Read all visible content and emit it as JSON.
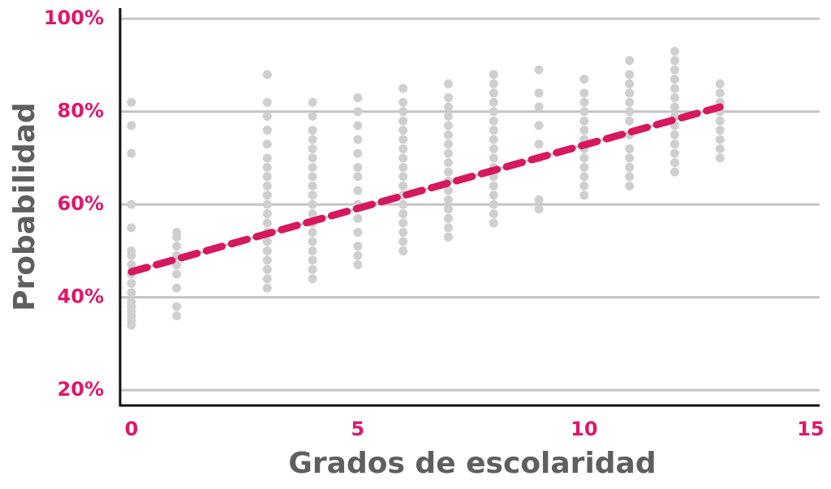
{
  "chart_data": {
    "type": "scatter",
    "x_label": "Grados de escolaridad",
    "y_label": "Probabilidad",
    "xlim": [
      -0.25,
      15.2
    ],
    "ylim": [
      16.7,
      102.3
    ],
    "xticks": [
      0,
      5,
      10,
      15
    ],
    "yticks": [
      {
        "value": 20,
        "label": "20%"
      },
      {
        "value": 40,
        "label": "40%"
      },
      {
        "value": 60,
        "label": "60%"
      },
      {
        "value": 80,
        "label": "80%"
      },
      {
        "value": 100,
        "label": "100%"
      }
    ],
    "grid": true,
    "tick_color": "#e0166a",
    "label_color": "#5f5f5f",
    "point_color": "#cfcfcf",
    "columns": [
      {
        "x": 0,
        "y": [
          34,
          35,
          36,
          37,
          38,
          39,
          41,
          43,
          45,
          47,
          49,
          50,
          55,
          60,
          71,
          77,
          82
        ]
      },
      {
        "x": 1,
        "y": [
          36,
          38,
          42,
          45,
          47,
          49,
          51,
          53,
          54
        ]
      },
      {
        "x": 3,
        "y": [
          42,
          44,
          46,
          48,
          50,
          52,
          54,
          56,
          58,
          60,
          62,
          64,
          66,
          68,
          70,
          73,
          76,
          79,
          82,
          88
        ]
      },
      {
        "x": 4,
        "y": [
          44,
          46,
          48,
          50,
          52,
          54,
          56,
          58,
          60,
          62,
          64,
          66,
          68,
          70,
          72,
          74,
          76,
          79,
          82
        ]
      },
      {
        "x": 5,
        "y": [
          47,
          49,
          51,
          54,
          57,
          60,
          63,
          66,
          68,
          71,
          74,
          77,
          80,
          83
        ]
      },
      {
        "x": 6,
        "y": [
          50,
          52,
          54,
          56,
          58,
          60,
          62,
          64,
          66,
          68,
          70,
          72,
          74,
          76,
          78,
          80,
          82,
          85
        ]
      },
      {
        "x": 7,
        "y": [
          53,
          55,
          57,
          59,
          61,
          63,
          65,
          67,
          69,
          71,
          73,
          75,
          77,
          79,
          81,
          83,
          86
        ]
      },
      {
        "x": 8,
        "y": [
          56,
          58,
          60,
          62,
          64,
          66,
          68,
          70,
          72,
          74,
          76,
          78,
          80,
          82,
          84,
          86,
          88
        ]
      },
      {
        "x": 9,
        "y": [
          59,
          61,
          70,
          73,
          77,
          81,
          84,
          89
        ]
      },
      {
        "x": 10,
        "y": [
          62,
          64,
          66,
          68,
          70,
          72,
          74,
          76,
          78,
          80,
          82,
          84,
          87
        ]
      },
      {
        "x": 11,
        "y": [
          64,
          66,
          68,
          70,
          72,
          75,
          78,
          80,
          82,
          84,
          86,
          88,
          91
        ]
      },
      {
        "x": 12,
        "y": [
          67,
          69,
          71,
          73,
          75,
          77,
          79,
          81,
          83,
          85,
          87,
          89,
          91,
          93
        ]
      },
      {
        "x": 13,
        "y": [
          70,
          72,
          74,
          76,
          78,
          80,
          82,
          84,
          86
        ]
      }
    ],
    "trend": {
      "color": "#d6185f",
      "x": [
        0,
        13
      ],
      "y": [
        45.5,
        81
      ]
    }
  }
}
